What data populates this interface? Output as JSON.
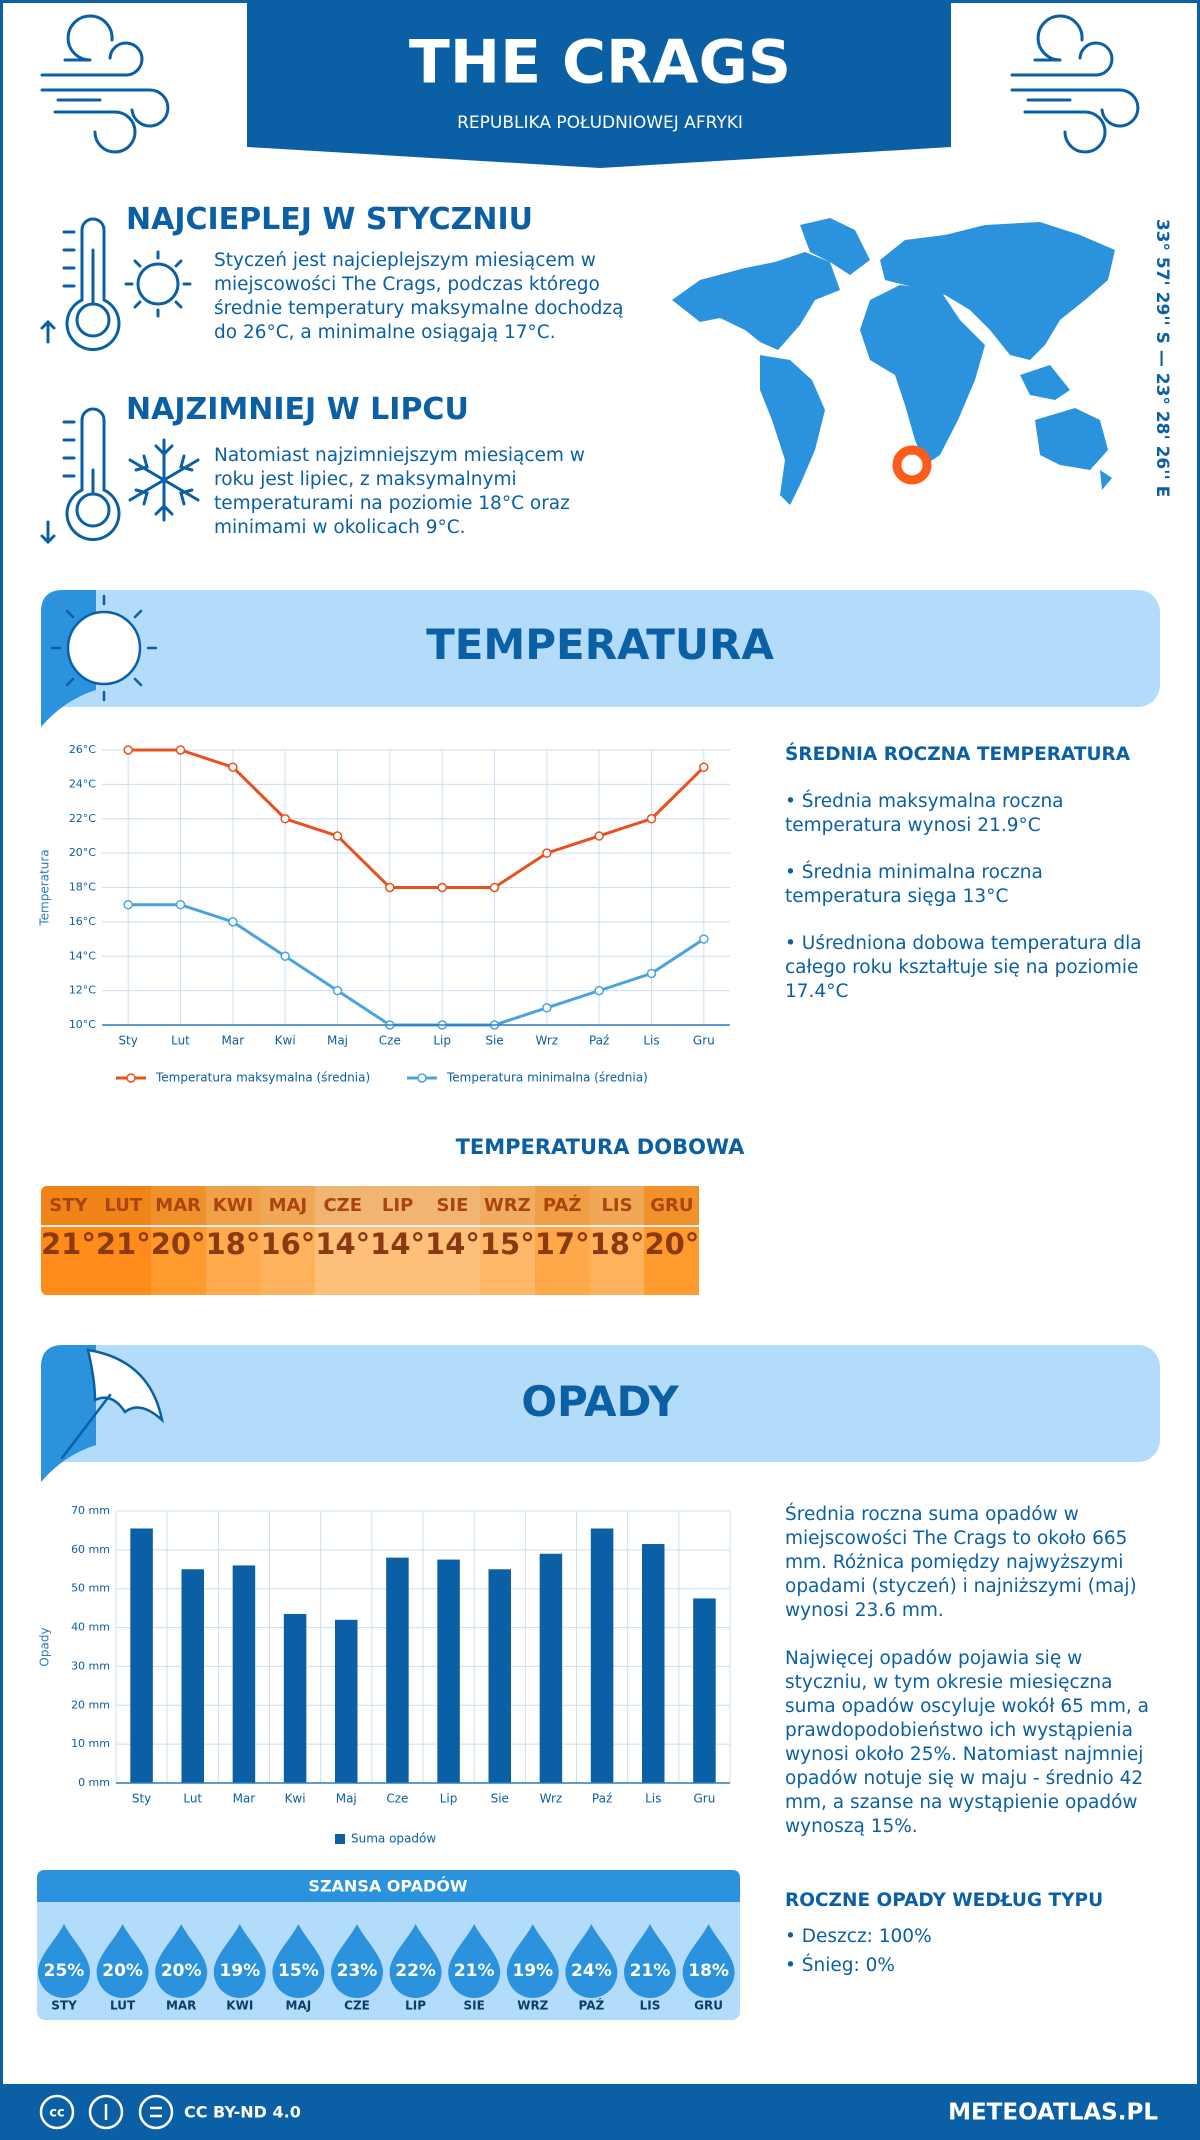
{
  "header": {
    "title": "THE CRAGS",
    "subtitle": "REPUBLIKA POŁUDNIOWEJ AFRYKI"
  },
  "warmest": {
    "title": "NAJCIEPLEJ W STYCZNIU",
    "text": "Styczeń jest najcieplejszym miesiącem w miejscowości The Crags, podczas którego średnie temperatury maksymalne dochodzą do 26°C, a minimalne osiągają 17°C."
  },
  "coldest": {
    "title": "NAJZIMNIEJ W LIPCU",
    "text": "Natomiast najzimniejszym miesiącem w roku jest lipiec, z maksymalnymi temperaturami na poziomie 18°C oraz minimami w okolicach 9°C."
  },
  "coordinates": "33° 57' 29'' S — 23° 28' 26'' E",
  "temperature_section": {
    "title": "TEMPERATURA",
    "summary_title": "ŚREDNIA ROCZNA TEMPERATURA",
    "bullets": [
      "• Średnia maksymalna roczna temperatura wynosi 21.9°C",
      "• Średnia minimalna roczna temperatura sięga 13°C",
      "• Uśredniona dobowa temperatura dla całego roku kształtuje się na poziomie 17.4°C"
    ]
  },
  "chart_data": [
    {
      "type": "line",
      "ylabel": "Temperatura",
      "categories": [
        "Sty",
        "Lut",
        "Mar",
        "Kwi",
        "Maj",
        "Cze",
        "Lip",
        "Sie",
        "Wrz",
        "Paź",
        "Lis",
        "Gru"
      ],
      "series": [
        {
          "name": "Temperatura maksymalna (średnia)",
          "color": "#e8501e",
          "values": [
            26,
            26,
            25,
            22,
            21,
            18,
            18,
            18,
            20,
            21,
            22,
            25
          ]
        },
        {
          "name": "Temperatura minimalna (średnia)",
          "color": "#4aa3df",
          "values": [
            17,
            17,
            16,
            14,
            12,
            10,
            10,
            10,
            11,
            12,
            13,
            15
          ]
        }
      ],
      "ylim": [
        10,
        26
      ],
      "yticks": [
        {
          "value": 10,
          "label": "10°C"
        },
        {
          "value": 12,
          "label": "12°C"
        },
        {
          "value": 14,
          "label": "14°C"
        },
        {
          "value": 16,
          "label": "16°C"
        },
        {
          "value": 18,
          "label": "18°C"
        },
        {
          "value": 20,
          "label": "20°C"
        },
        {
          "value": 22,
          "label": "22°C"
        },
        {
          "value": 24,
          "label": "24°C"
        },
        {
          "value": 26,
          "label": "26°C"
        }
      ],
      "grid": true,
      "legend": "bottom"
    },
    {
      "type": "bar",
      "ylabel": "Opady",
      "categories": [
        "Sty",
        "Lut",
        "Mar",
        "Kwi",
        "Maj",
        "Cze",
        "Lip",
        "Sie",
        "Wrz",
        "Paź",
        "Lis",
        "Gru"
      ],
      "series": [
        {
          "name": "Suma opadów",
          "color": "#0b5fa5",
          "values": [
            65.5,
            55,
            56,
            43.5,
            42,
            58,
            57.5,
            55,
            59,
            65.5,
            61.5,
            47.5
          ]
        }
      ],
      "ylim": [
        0,
        70
      ],
      "yticks": [
        {
          "value": 0,
          "label": "0 mm"
        },
        {
          "value": 10,
          "label": "10 mm"
        },
        {
          "value": 20,
          "label": "20 mm"
        },
        {
          "value": 30,
          "label": "30 mm"
        },
        {
          "value": 40,
          "label": "40 mm"
        },
        {
          "value": 50,
          "label": "50 mm"
        },
        {
          "value": 60,
          "label": "60 mm"
        },
        {
          "value": 70,
          "label": "70 mm"
        }
      ],
      "grid": true,
      "legend": "bottom"
    }
  ],
  "daily_temperature": {
    "title": "TEMPERATURA DOBOWA",
    "months": [
      "STY",
      "LUT",
      "MAR",
      "KWI",
      "MAJ",
      "CZE",
      "LIP",
      "SIE",
      "WRZ",
      "PAŹ",
      "LIS",
      "GRU"
    ],
    "values": [
      "21°",
      "21°",
      "20°",
      "18°",
      "16°",
      "14°",
      "14°",
      "14°",
      "15°",
      "17°",
      "18°",
      "20°"
    ],
    "colors": [
      "#ff8c1a",
      "#ff8c1a",
      "#ff9a2e",
      "#ffaa4d",
      "#ffb25c",
      "#ffc07a",
      "#ffc07a",
      "#ffc07a",
      "#ffb868",
      "#ffa849",
      "#ffb25c",
      "#ff9a2e"
    ]
  },
  "precipitation_section": {
    "title": "OPADY",
    "paragraphs": [
      "Średnia roczna suma opadów w miejscowości The Crags to około 665 mm. Różnica pomiędzy najwyższymi opadami (styczeń) i najniższymi (maj) wynosi 23.6 mm.",
      "Najwięcej opadów pojawia się w styczniu, w tym okresie miesięczna suma opadów oscyluje wokół 65 mm, a prawdopodobieństwo ich wystąpienia wynosi około 25%. Natomiast najmniej opadów notuje się w maju - średnio 42 mm, a szanse na wystąpienie opadów wynoszą 15%."
    ]
  },
  "rain_chance": {
    "title": "SZANSA OPADÓW",
    "months": [
      "STY",
      "LUT",
      "MAR",
      "KWI",
      "MAJ",
      "CZE",
      "LIP",
      "SIE",
      "WRZ",
      "PAŹ",
      "LIS",
      "GRU"
    ],
    "values": [
      "25%",
      "20%",
      "20%",
      "19%",
      "15%",
      "23%",
      "22%",
      "21%",
      "19%",
      "24%",
      "21%",
      "18%"
    ]
  },
  "precipitation_type": {
    "title": "ROCZNE OPADY WEDŁUG TYPU",
    "items": [
      "• Deszcz: 100%",
      "• Śnieg: 0%"
    ]
  },
  "footer": {
    "license": "CC BY-ND 4.0",
    "site": "METEOATLAS.PL"
  }
}
